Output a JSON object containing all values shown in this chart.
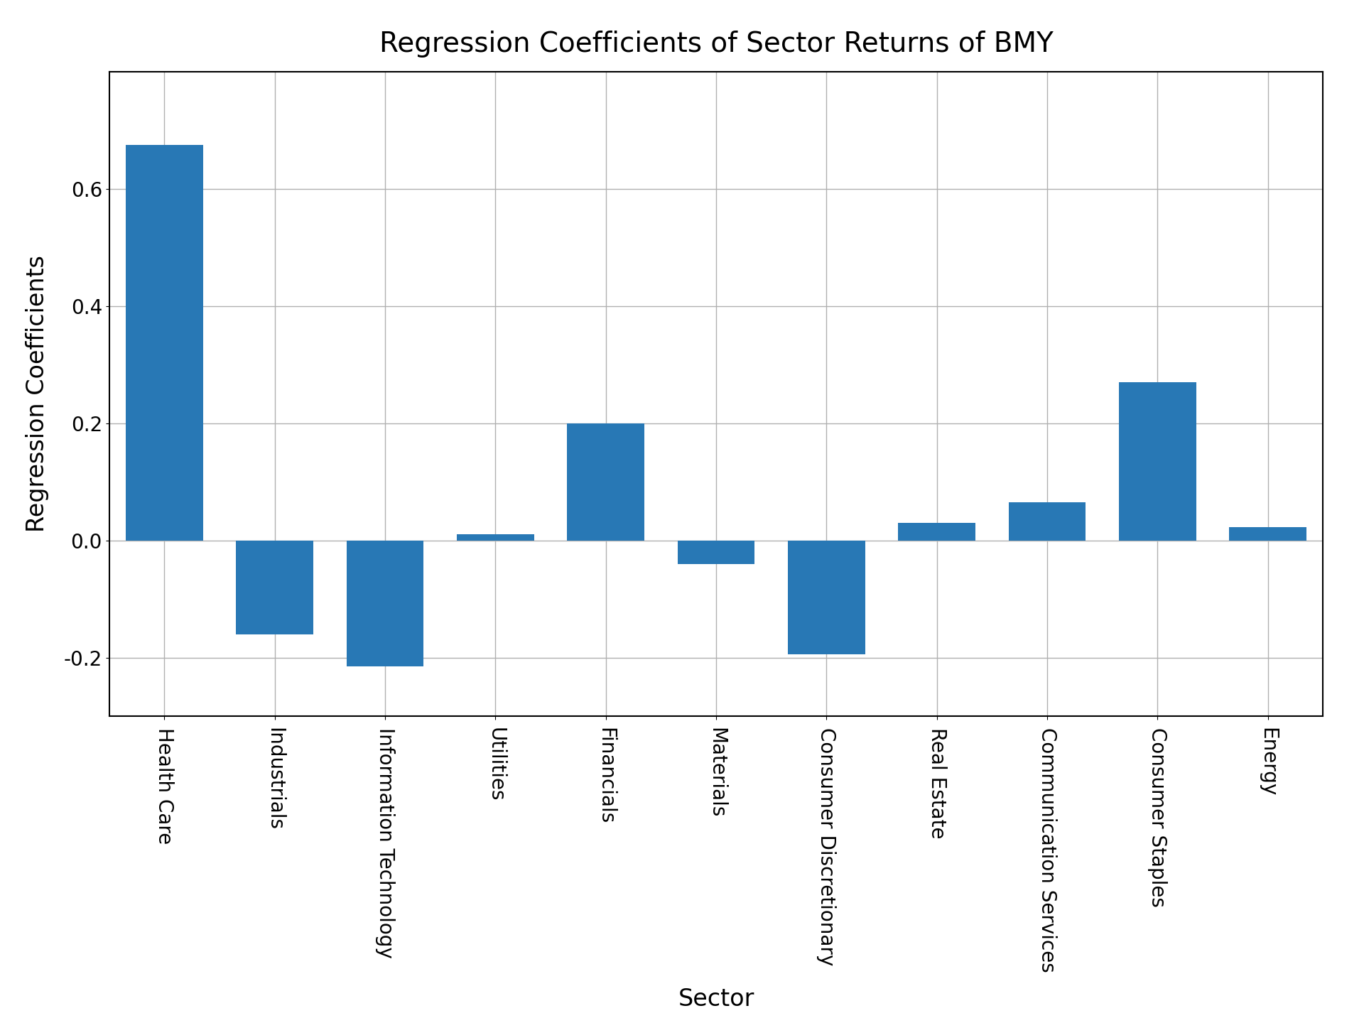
{
  "title": "Regression Coefficients of Sector Returns of BMY",
  "xlabel": "Sector",
  "ylabel": "Regression Coefficients",
  "categories": [
    "Health Care",
    "Industrials",
    "Information Technology",
    "Utilities",
    "Financials",
    "Materials",
    "Consumer Discretionary",
    "Real Estate",
    "Communication Services",
    "Consumer Staples",
    "Energy"
  ],
  "values": [
    0.675,
    -0.16,
    -0.215,
    0.01,
    0.2,
    -0.04,
    -0.195,
    0.03,
    0.065,
    0.27,
    0.022
  ],
  "bar_color": "#2878b5",
  "background_color": "#ffffff",
  "grid_color": "#b0b0b0",
  "ylim": [
    -0.3,
    0.8
  ],
  "yticks": [
    -0.2,
    0.0,
    0.2,
    0.4,
    0.6
  ],
  "title_fontsize": 28,
  "label_fontsize": 24,
  "tick_fontsize": 20,
  "bar_width": 0.7
}
